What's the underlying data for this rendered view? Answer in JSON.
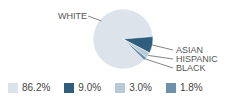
{
  "chart_data": {
    "type": "pie",
    "categories": [
      "WHITE",
      "ASIAN",
      "HISPANIC",
      "BLACK"
    ],
    "values": [
      86.2,
      9.0,
      3.0,
      1.8
    ],
    "value_labels": [
      "86.2%",
      "9.0%",
      "3.0%",
      "1.8%"
    ],
    "colors": [
      "#dce3eb",
      "#2f5d7c",
      "#b9c9d7",
      "#6d90ad"
    ]
  }
}
